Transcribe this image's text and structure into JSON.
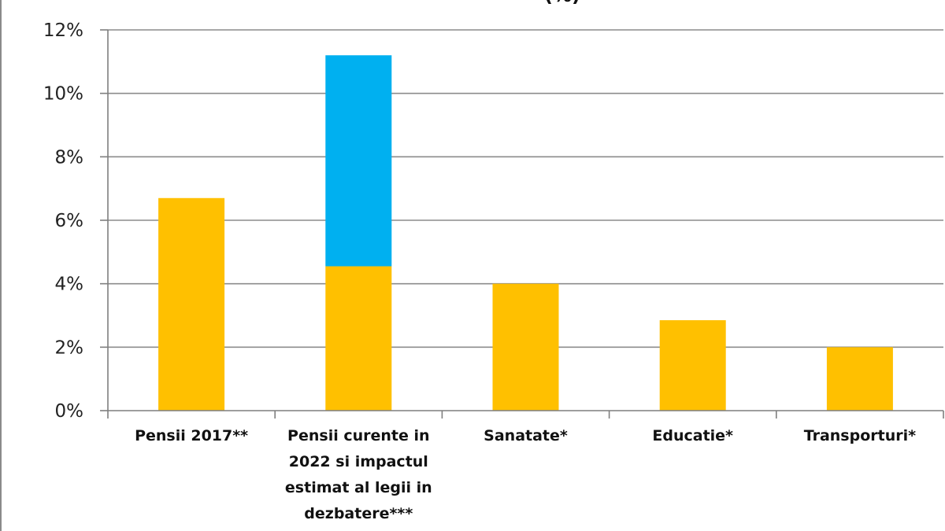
{
  "chart_data": {
    "type": "bar",
    "stacked": true,
    "title": "(%)",
    "categories": [
      [
        "Pensii 2017**"
      ],
      [
        "Pensii curente in",
        "2022 si impactul",
        "estimat al legii in",
        "dezbatere***"
      ],
      [
        "Sanatate*"
      ],
      [
        "Educatie*"
      ],
      [
        "Transporturi*"
      ]
    ],
    "series": [
      {
        "values": [
          6.7,
          4.55,
          4.0,
          2.85,
          2.0
        ],
        "color": "#FFC000"
      },
      {
        "values": [
          0,
          6.65,
          0,
          0,
          0
        ],
        "color": "#00B0F0"
      }
    ],
    "ylim": [
      0,
      12
    ],
    "yticks": [
      0,
      2,
      4,
      6,
      8,
      10,
      12
    ],
    "ytick_labels": [
      "0%",
      "2%",
      "4%",
      "6%",
      "8%",
      "10%",
      "12%"
    ],
    "xlabel": "",
    "ylabel": "",
    "grid": true,
    "legend": "none"
  }
}
